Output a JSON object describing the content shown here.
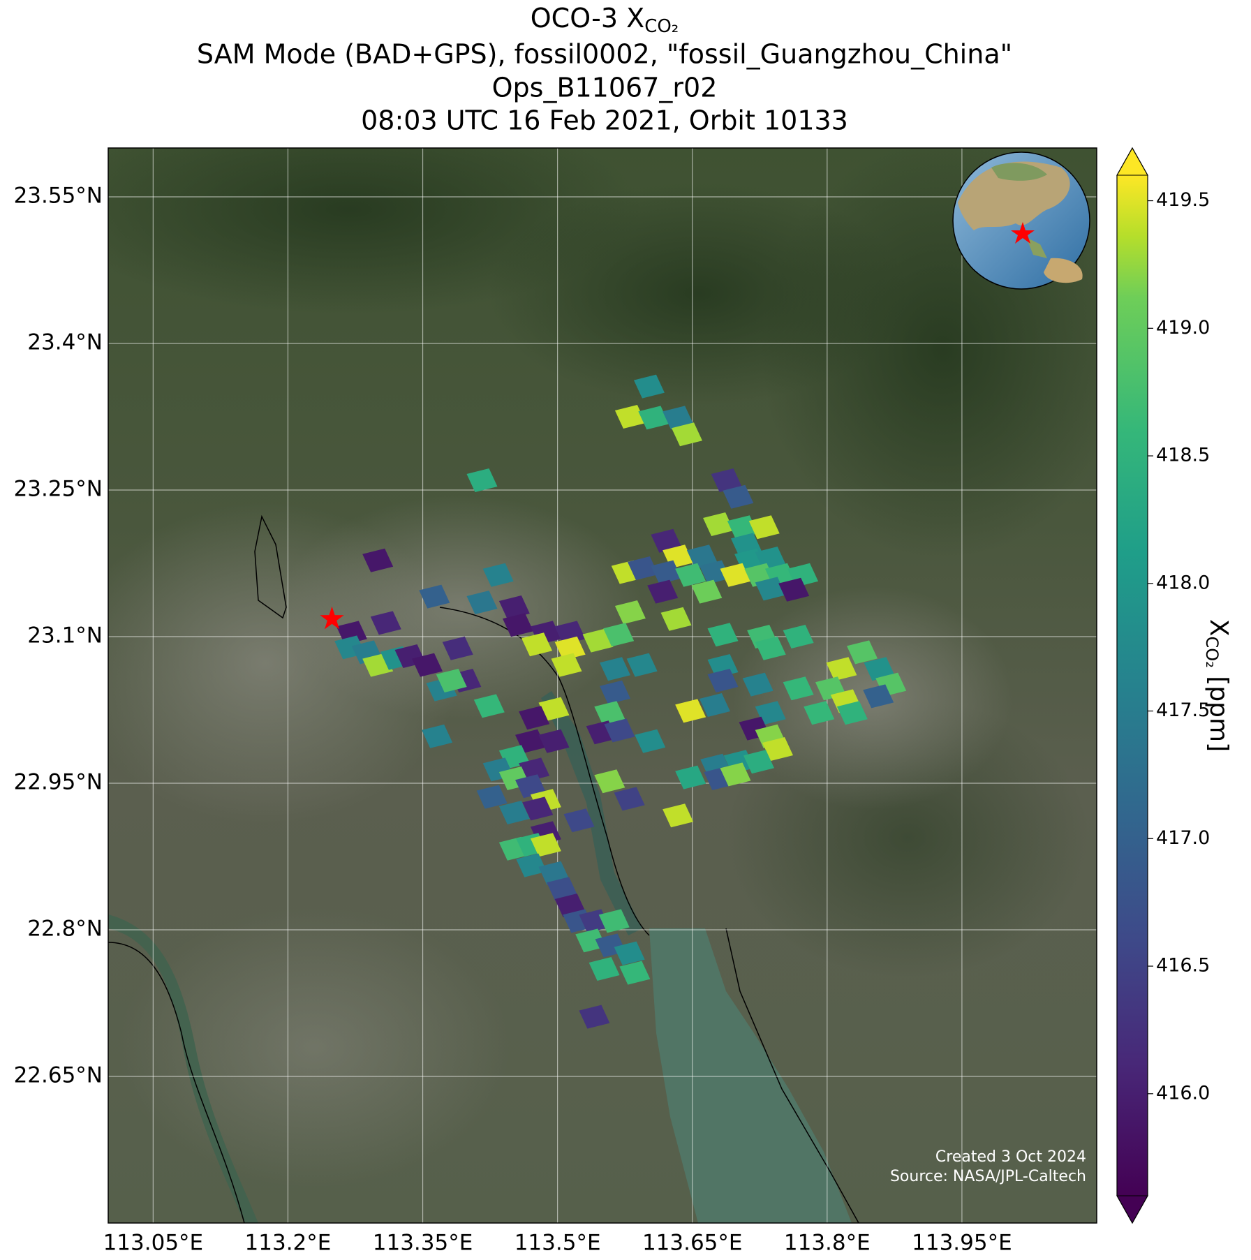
{
  "chart_data": {
    "type": "map",
    "title": {
      "text": "OCO-3 X",
      "subscript": "CO₂",
      "lines": [
        "SAM Mode (BAD+GPS), fossil0002, \"fossil_Guangzhou_China\"",
        "Ops_B11067_r02",
        "08:03 UTC 16 Feb 2021, Orbit 10133"
      ]
    },
    "xlim": [
      113.0,
      114.1
    ],
    "ylim": [
      22.5,
      23.6
    ],
    "xticks": [
      {
        "value": 113.05,
        "label": "113.05°E"
      },
      {
        "value": 113.2,
        "label": "113.2°E"
      },
      {
        "value": 113.35,
        "label": "113.35°E"
      },
      {
        "value": 113.5,
        "label": "113.5°E"
      },
      {
        "value": 113.65,
        "label": "113.65°E"
      },
      {
        "value": 113.8,
        "label": "113.8°E"
      },
      {
        "value": 113.95,
        "label": "113.95°E"
      }
    ],
    "yticks": [
      {
        "value": 22.65,
        "label": "22.65°N"
      },
      {
        "value": 22.8,
        "label": "22.8°N"
      },
      {
        "value": 22.95,
        "label": "22.95°N"
      },
      {
        "value": 23.1,
        "label": "23.1°N"
      },
      {
        "value": 23.25,
        "label": "23.25°N"
      },
      {
        "value": 23.4,
        "label": "23.4°N"
      },
      {
        "value": 23.55,
        "label": "23.55°N"
      }
    ],
    "grid": true,
    "colorbar": {
      "label": {
        "text": "X",
        "subscript": "CO₂",
        "unit": " [ppm]"
      },
      "clim": [
        415.6,
        419.6
      ],
      "colormap": "viridis",
      "ticks": [
        {
          "value": 416,
          "label": "416.0"
        },
        416.5,
        {
          "value": 417,
          "label": "417.0"
        },
        417.5,
        {
          "value": 418,
          "label": "418.0"
        },
        418.5,
        {
          "value": 419,
          "label": "419.0"
        },
        419.5
      ]
    },
    "target": {
      "lon": 113.249,
      "lat": 23.118,
      "color": "#ff0000"
    },
    "annotations": [
      "Created 3 Oct 2024",
      "Source: NASA/JPL-Caltech"
    ],
    "footprints": {
      "lon": [
        113.602,
        113.581,
        113.607,
        113.634,
        113.644,
        113.416,
        113.688,
        113.701,
        113.679,
        113.706,
        113.73,
        113.621,
        113.634,
        113.661,
        113.71,
        113.714,
        113.737,
        113.3,
        113.434,
        113.577,
        113.595,
        113.621,
        113.648,
        113.675,
        113.698,
        113.725,
        113.748,
        113.773,
        113.617,
        113.666,
        113.737,
        113.763,
        113.363,
        113.416,
        113.452,
        113.581,
        113.632,
        113.309,
        113.271,
        113.456,
        113.487,
        113.514,
        113.477,
        113.514,
        113.545,
        113.568,
        113.684,
        113.728,
        113.768,
        113.269,
        113.288,
        113.3,
        113.32,
        113.336,
        113.355,
        113.389,
        113.398,
        113.51,
        113.564,
        113.594,
        113.684,
        113.737,
        113.816,
        113.839,
        113.858,
        113.871,
        113.371,
        113.382,
        113.424,
        113.564,
        113.684,
        113.723,
        113.768,
        113.804,
        113.821,
        113.857,
        113.496,
        113.648,
        113.675,
        113.737,
        113.791,
        113.828,
        113.474,
        113.558,
        113.549,
        113.569,
        113.366,
        113.603,
        113.719,
        113.737,
        113.745,
        113.47,
        113.496,
        113.452,
        113.434,
        113.474,
        113.676,
        113.702,
        113.724,
        113.648,
        113.452,
        113.47,
        113.558,
        113.68,
        113.698,
        113.427,
        113.487,
        113.478,
        113.58,
        113.634,
        113.452,
        113.524,
        113.487,
        113.452,
        113.471,
        113.487,
        113.471,
        113.496,
        113.505,
        113.514,
        113.523,
        113.541,
        113.563,
        113.537,
        113.559,
        113.58,
        113.552,
        113.586,
        113.541
      ],
      "lat": [
        23.356,
        23.325,
        23.324,
        23.324,
        23.307,
        23.26,
        23.26,
        23.243,
        23.215,
        23.212,
        23.212,
        23.198,
        23.182,
        23.182,
        23.194,
        23.178,
        23.18,
        23.178,
        23.163,
        23.166,
        23.17,
        23.166,
        23.163,
        23.166,
        23.163,
        23.163,
        23.163,
        23.163,
        23.146,
        23.146,
        23.149,
        23.148,
        23.141,
        23.135,
        23.13,
        23.125,
        23.118,
        23.114,
        23.104,
        23.112,
        23.104,
        23.104,
        23.092,
        23.088,
        23.096,
        23.102,
        23.102,
        23.1,
        23.1,
        23.089,
        23.084,
        23.071,
        23.078,
        23.08,
        23.071,
        23.088,
        23.055,
        23.071,
        23.067,
        23.071,
        23.07,
        23.088,
        23.067,
        23.084,
        23.067,
        23.051,
        23.046,
        23.055,
        23.029,
        23.043,
        23.055,
        23.051,
        23.047,
        23.047,
        23.034,
        23.039,
        23.026,
        23.024,
        23.03,
        23.022,
        23.022,
        23.022,
        23.017,
        23.022,
        23.002,
        23.004,
        22.998,
        22.993,
        23.006,
        22.998,
        22.985,
        22.993,
        22.993,
        22.977,
        22.964,
        22.964,
        22.968,
        22.972,
        22.972,
        22.956,
        22.955,
        22.947,
        22.952,
        22.955,
        22.959,
        22.936,
        22.932,
        22.924,
        22.934,
        22.917,
        22.92,
        22.912,
        22.899,
        22.883,
        22.887,
        22.887,
        22.866,
        22.858,
        22.842,
        22.825,
        22.809,
        22.809,
        22.809,
        22.789,
        22.784,
        22.776,
        22.76,
        22.756,
        22.711
      ],
      "xco2": [
        417.8,
        419.4,
        418.5,
        417.5,
        419.3,
        418.4,
        416.3,
        416.9,
        419.3,
        418.6,
        419.4,
        416.1,
        419.5,
        417.4,
        417.9,
        418.0,
        417.9,
        415.9,
        417.6,
        419.4,
        416.8,
        416.9,
        418.7,
        417.3,
        419.5,
        418.9,
        418.6,
        418.5,
        416.0,
        419.1,
        417.7,
        415.9,
        417.0,
        417.4,
        416.0,
        419.2,
        419.3,
        416.1,
        415.9,
        415.9,
        416.0,
        416.1,
        419.4,
        419.5,
        419.3,
        418.8,
        418.5,
        418.7,
        418.5,
        417.7,
        417.5,
        419.3,
        417.9,
        416.0,
        415.9,
        416.2,
        416.1,
        419.4,
        417.6,
        417.7,
        417.8,
        418.6,
        419.4,
        418.9,
        417.9,
        418.9,
        417.6,
        418.8,
        418.6,
        416.9,
        416.8,
        417.6,
        418.6,
        418.9,
        419.4,
        417.0,
        419.4,
        419.5,
        417.5,
        417.7,
        418.6,
        418.5,
        415.9,
        418.8,
        416.0,
        416.6,
        417.6,
        417.8,
        415.9,
        419.2,
        419.4,
        415.9,
        416.0,
        418.5,
        417.5,
        416.1,
        417.5,
        417.9,
        418.4,
        418.3,
        419.0,
        416.6,
        419.2,
        416.8,
        419.2,
        417.0,
        419.4,
        416.1,
        416.5,
        419.4,
        417.5,
        416.6,
        416.0,
        418.7,
        418.5,
        419.4,
        417.7,
        417.4,
        416.7,
        416.0,
        416.8,
        416.4,
        418.7,
        418.7,
        416.9,
        417.8,
        418.5,
        418.6,
        416.3
      ]
    }
  }
}
